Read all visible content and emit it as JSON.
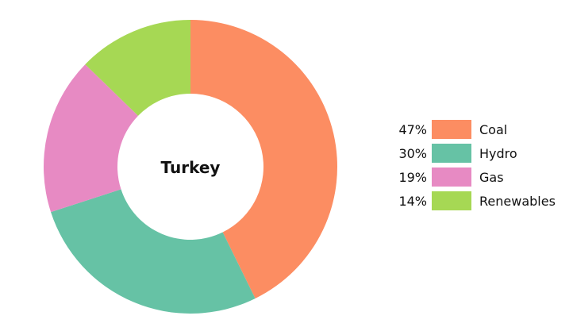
{
  "chart_data": {
    "type": "pie",
    "title": "Turkey",
    "categories": [
      "Coal",
      "Hydro",
      "Gas",
      "Renewables"
    ],
    "values": [
      47,
      30,
      19,
      14
    ],
    "value_labels": [
      "47%",
      "30%",
      "19%",
      "14%"
    ],
    "colors": [
      "#fc8d62",
      "#66c2a5",
      "#e78ac3",
      "#a6d854"
    ],
    "donut": true,
    "legend_position": "right"
  }
}
